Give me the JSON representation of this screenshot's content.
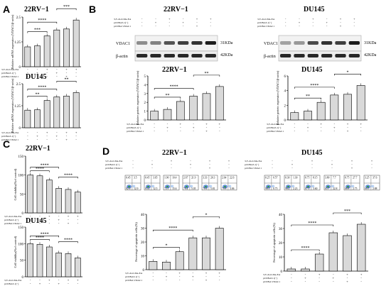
{
  "panel_labels": {
    "A": "A",
    "B": "B",
    "C": "C",
    "D": "D"
  },
  "cell_lines": {
    "r22": "22RV−1",
    "du": "DU145"
  },
  "treatment_rows": [
    "3,3'-di-O-Me-EA",
    "pCDNA3.1(−)",
    "pCDNA VDAC1"
  ],
  "treatment_signs": [
    [
      "-",
      "-",
      "+",
      "-",
      "+",
      "+"
    ],
    [
      "-",
      "+",
      "-",
      "+",
      "-",
      "-"
    ],
    [
      "-",
      "-",
      "-",
      "-",
      "+",
      "-"
    ]
  ],
  "sig": {
    "s4": "****",
    "s3": "***",
    "s2": "**",
    "s1": "*"
  },
  "blot": {
    "vdac1": "VDAC1",
    "actin": "β-actin",
    "kda31": "31KDa",
    "kda42": "42KDa"
  },
  "flow_quadrants_r22": [
    [
      "0.45",
      "3.5",
      "82.6",
      "12.9"
    ],
    [
      "0.45",
      "3.65",
      "83.4",
      "12.5"
    ],
    [
      "1.90",
      "10.4",
      "72.1",
      "15.6"
    ],
    [
      "2.67",
      "21.9",
      "70.4",
      "5.05"
    ],
    [
      "3.33",
      "20.3",
      "70.6",
      "5.81"
    ],
    [
      "2.64",
      "22.6",
      "70.8",
      "3.06"
    ]
  ],
  "flow_quadrants_du": [
    [
      "0.25",
      "0.57",
      "98.3",
      "0.75"
    ],
    [
      "0.30",
      "1.30",
      "96.2",
      "2.23"
    ],
    [
      "0.75",
      "8.15",
      "87.5",
      "3.60"
    ],
    [
      "3.80",
      "7.7",
      "65.7",
      "22.8"
    ],
    [
      "0.75",
      "27.7",
      "68.8",
      "2.75"
    ],
    [
      "3.25",
      "37.6",
      "60.5",
      "2.88"
    ]
  ],
  "chart_data": [
    {
      "type": "bar",
      "title": "22RV−1",
      "ylabel": "Relative mRNA expression (VDAC1/β-actin)",
      "ylim": [
        0,
        2.5
      ],
      "values": [
        1.0,
        1.05,
        1.55,
        1.85,
        1.9,
        2.35
      ],
      "sig": [
        {
          "from": 0,
          "to": 2,
          "label": "***"
        },
        {
          "from": 0,
          "to": 3,
          "label": "****"
        },
        {
          "from": 3,
          "to": 5,
          "label": "***"
        }
      ]
    },
    {
      "type": "bar",
      "title": "DU145",
      "ylabel": "Relative mRNA expression (VDAC1/β-actin)",
      "ylim": [
        0,
        2.5
      ],
      "values": [
        1.0,
        1.02,
        1.55,
        1.75,
        1.8,
        2.0
      ],
      "sig": [
        {
          "from": 0,
          "to": 2,
          "label": "**"
        },
        {
          "from": 0,
          "to": 3,
          "label": "****"
        },
        {
          "from": 3,
          "to": 5,
          "label": "**"
        }
      ]
    },
    {
      "type": "bar",
      "title": "22RV−1",
      "ylabel": "Relative protein expression (VDAC1/β-actin)",
      "yticks": [
        0,
        1,
        2,
        3,
        4,
        5
      ],
      "ylim": [
        0,
        5
      ],
      "values": [
        1.0,
        1.2,
        2.1,
        2.7,
        3.0,
        3.8
      ],
      "sig": [
        {
          "from": 0,
          "to": 2,
          "label": "**"
        },
        {
          "from": 0,
          "to": 3,
          "label": "****"
        },
        {
          "from": 3,
          "to": 5,
          "label": "**"
        }
      ]
    },
    {
      "type": "bar",
      "title": "DU145",
      "ylabel": "Relative protein expression (VDAC1/β-actin)",
      "yticks": [
        0,
        2,
        4,
        6
      ],
      "ylim": [
        0,
        6
      ],
      "values": [
        1.0,
        1.2,
        2.4,
        3.4,
        3.5,
        4.7
      ],
      "sig": [
        {
          "from": 0,
          "to": 2,
          "label": "**"
        },
        {
          "from": 0,
          "to": 3,
          "label": "****"
        },
        {
          "from": 3,
          "to": 5,
          "label": "*"
        }
      ]
    },
    {
      "type": "bar",
      "title": "22RV−1",
      "ylabel": "Cell viability(%of control)",
      "yticks": [
        0,
        50,
        100,
        150
      ],
      "ylim": [
        0,
        150
      ],
      "values": [
        100,
        98,
        87,
        65,
        62,
        55
      ],
      "sig": [
        {
          "from": 0,
          "to": 2,
          "label": "****"
        },
        {
          "from": 0,
          "to": 3,
          "label": "****"
        },
        {
          "from": 3,
          "to": 5,
          "label": "****"
        }
      ]
    },
    {
      "type": "bar",
      "title": "DU145",
      "ylabel": "Cell viability(%of control)",
      "yticks": [
        0,
        50,
        100,
        150
      ],
      "ylim": [
        0,
        150
      ],
      "values": [
        100,
        98,
        90,
        72,
        70,
        57
      ],
      "sig": [
        {
          "from": 0,
          "to": 2,
          "label": "****"
        },
        {
          "from": 0,
          "to": 3,
          "label": "****"
        },
        {
          "from": 3,
          "to": 5,
          "label": "****"
        }
      ]
    },
    {
      "type": "bar",
      "ylabel": "Percentage of apoptotic cells (%)",
      "yticks": [
        0,
        10,
        20,
        30,
        40
      ],
      "ylim": [
        0,
        40
      ],
      "values": [
        6,
        5.5,
        13,
        23,
        23,
        30
      ],
      "sig": [
        {
          "from": 0,
          "to": 2,
          "label": "*"
        },
        {
          "from": 0,
          "to": 3,
          "label": "****"
        },
        {
          "from": 3,
          "to": 5,
          "label": "*"
        }
      ]
    },
    {
      "type": "bar",
      "ylabel": "Percentage of apoptotic cells (%)",
      "yticks": [
        0,
        10,
        20,
        30,
        40
      ],
      "ylim": [
        0,
        40
      ],
      "values": [
        1.5,
        1.5,
        12,
        27,
        25,
        33
      ],
      "sig": [
        {
          "from": 0,
          "to": 2,
          "label": "****"
        },
        {
          "from": 0,
          "to": 3,
          "label": "****"
        },
        {
          "from": 3,
          "to": 5,
          "label": "***"
        }
      ]
    }
  ]
}
